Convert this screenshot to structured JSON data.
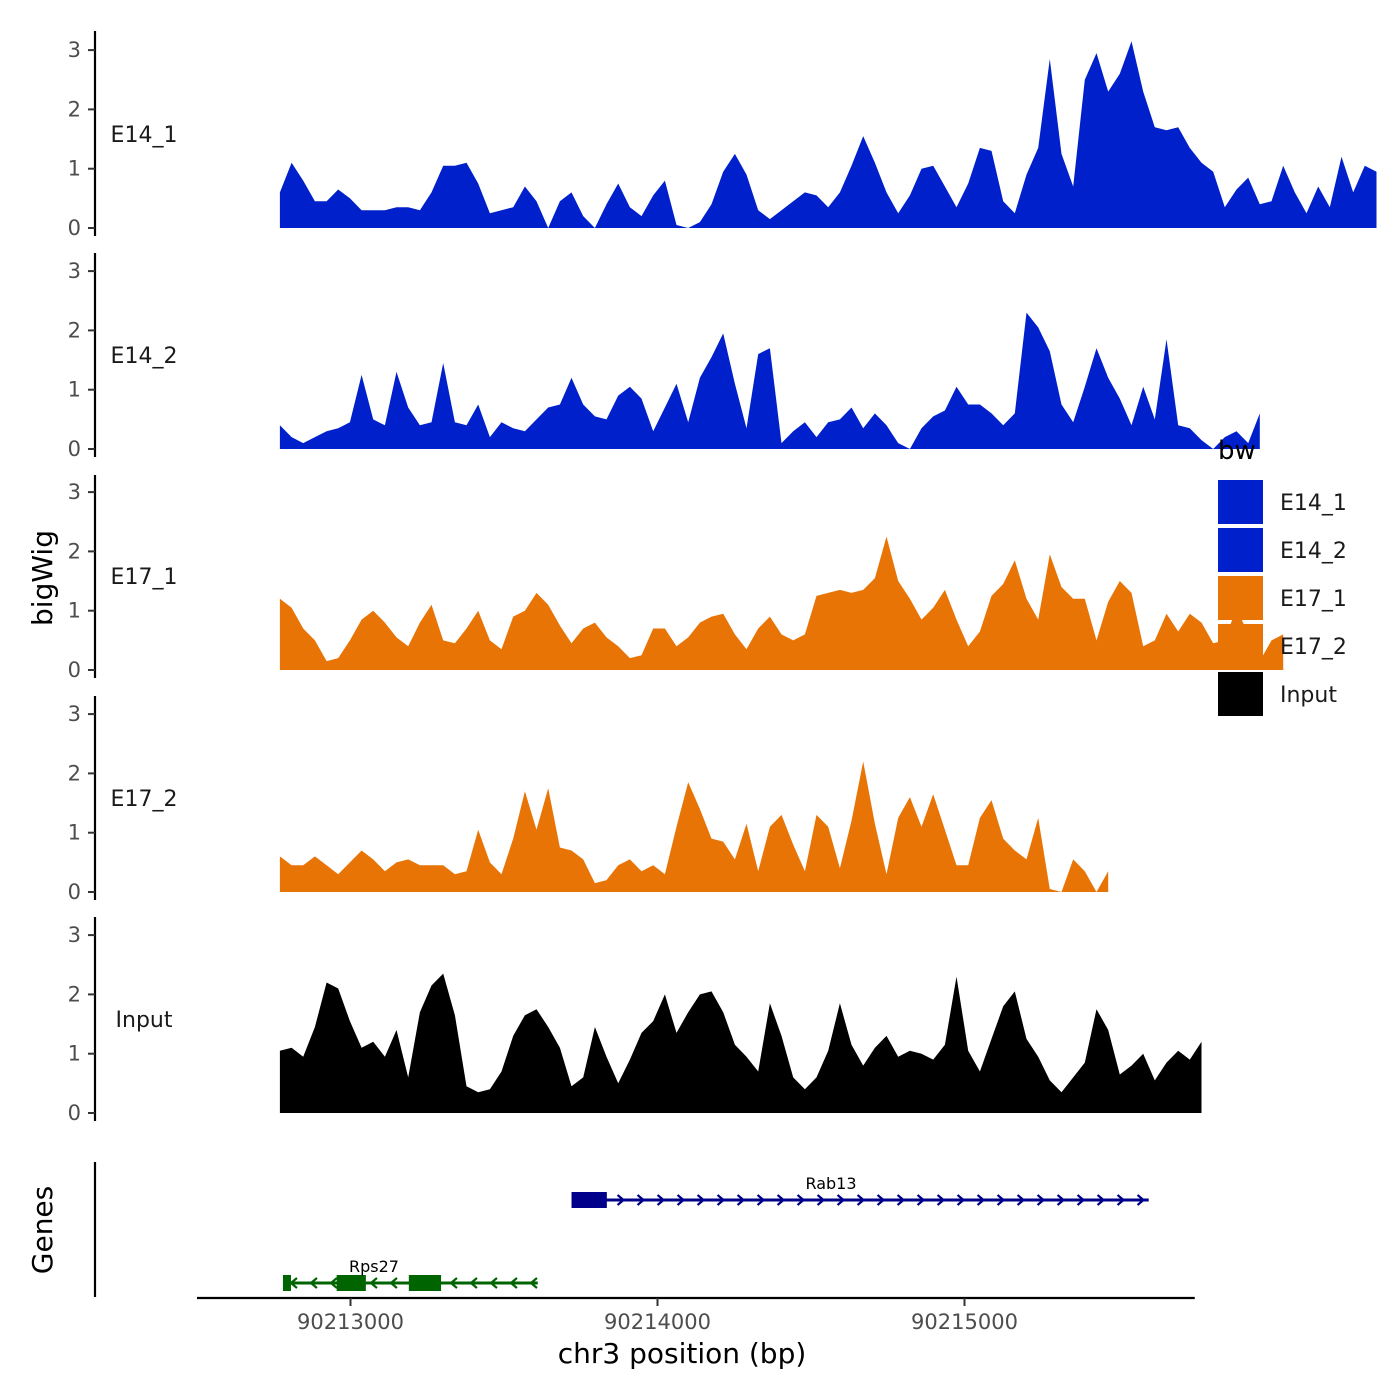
{
  "chart_data": {
    "type": "area",
    "title": "",
    "xlabel": "chr3 position (bp)",
    "ylabel_tracks": "bigWig",
    "ylabel_genes": "Genes",
    "chromosome": "chr3",
    "xlim": [
      90212500,
      90215750
    ],
    "x_ticks": [
      90213000,
      90214000,
      90215000
    ],
    "x_tick_labels": [
      "90213000",
      "90214000",
      "90215000"
    ],
    "ylim": [
      0,
      3.2
    ],
    "y_ticks": [
      0,
      1,
      2,
      3
    ],
    "y_tick_labels": [
      "0",
      "1",
      "2",
      "3"
    ],
    "x_start": 90212770,
    "x_step": 38,
    "legend": {
      "title": "bw",
      "position": "right",
      "entries": [
        {
          "label": "E14_1",
          "color": "#0020CC"
        },
        {
          "label": "E14_2",
          "color": "#0020CC"
        },
        {
          "label": "E17_1",
          "color": "#E87405"
        },
        {
          "label": "E17_2",
          "color": "#E87405"
        },
        {
          "label": "Input",
          "color": "#000000"
        }
      ]
    },
    "series": [
      {
        "name": "E14_1",
        "color": "#0020CC",
        "values": [
          0.6,
          1.1,
          0.8,
          0.45,
          0.45,
          0.65,
          0.5,
          0.3,
          0.3,
          0.3,
          0.35,
          0.35,
          0.3,
          0.6,
          1.05,
          1.05,
          1.1,
          0.75,
          0.25,
          0.3,
          0.35,
          0.7,
          0.45,
          0,
          0.45,
          0.6,
          0.2,
          0,
          0.4,
          0.75,
          0.35,
          0.2,
          0.55,
          0.8,
          0.05,
          0,
          0.1,
          0.4,
          0.95,
          1.25,
          0.9,
          0.3,
          0.15,
          0.3,
          0.45,
          0.6,
          0.55,
          0.35,
          0.6,
          1.05,
          1.55,
          1.1,
          0.6,
          0.25,
          0.55,
          1,
          1.05,
          0.7,
          0.35,
          0.75,
          1.35,
          1.3,
          0.45,
          0.25,
          0.9,
          1.35,
          2.85,
          1.25,
          0.7,
          2.5,
          2.95,
          2.3,
          2.6,
          3.15,
          2.3,
          1.7,
          1.65,
          1.7,
          1.35,
          1.1,
          0.95,
          0.35,
          0.65,
          0.85,
          0.4,
          0.45,
          1.05,
          0.6,
          0.25,
          0.7,
          0.35,
          1.2,
          0.6,
          1.05,
          0.95
        ]
      },
      {
        "name": "E14_2",
        "color": "#0020CC",
        "values": [
          0.4,
          0.2,
          0.1,
          0.2,
          0.3,
          0.35,
          0.45,
          1.25,
          0.5,
          0.4,
          1.3,
          0.7,
          0.4,
          0.45,
          1.45,
          0.45,
          0.4,
          0.75,
          0.2,
          0.45,
          0.35,
          0.3,
          0.5,
          0.7,
          0.75,
          1.2,
          0.75,
          0.55,
          0.5,
          0.9,
          1.05,
          0.85,
          0.3,
          0.7,
          1.1,
          0.45,
          1.2,
          1.55,
          1.95,
          1.1,
          0.35,
          1.6,
          1.7,
          0.1,
          0.3,
          0.45,
          0.2,
          0.45,
          0.5,
          0.7,
          0.35,
          0.6,
          0.4,
          0.1,
          0,
          0.35,
          0.55,
          0.65,
          1.05,
          0.75,
          0.75,
          0.6,
          0.4,
          0.6,
          2.3,
          2.05,
          1.65,
          0.75,
          0.45,
          1.05,
          1.7,
          1.2,
          0.85,
          0.4,
          1.05,
          0.5,
          1.85,
          0.4,
          0.35,
          0.15,
          0,
          0.2,
          0.3,
          0.1,
          0.6
        ]
      },
      {
        "name": "E17_1",
        "color": "#E87405",
        "values": [
          1.2,
          1.05,
          0.7,
          0.5,
          0.15,
          0.2,
          0.5,
          0.85,
          1,
          0.8,
          0.55,
          0.4,
          0.8,
          1.1,
          0.5,
          0.45,
          0.7,
          1,
          0.5,
          0.35,
          0.9,
          1,
          1.3,
          1.1,
          0.75,
          0.45,
          0.7,
          0.8,
          0.55,
          0.4,
          0.2,
          0.25,
          0.7,
          0.7,
          0.4,
          0.55,
          0.8,
          0.9,
          0.95,
          0.6,
          0.35,
          0.7,
          0.9,
          0.6,
          0.5,
          0.6,
          1.25,
          1.3,
          1.35,
          1.3,
          1.35,
          1.55,
          2.25,
          1.5,
          1.2,
          0.85,
          1.05,
          1.35,
          0.85,
          0.4,
          0.65,
          1.25,
          1.45,
          1.85,
          1.2,
          0.85,
          1.95,
          1.4,
          1.2,
          1.2,
          0.5,
          1.15,
          1.5,
          1.3,
          0.4,
          0.5,
          0.95,
          0.65,
          0.95,
          0.8,
          0.45,
          0.5,
          1.05,
          0.6,
          0.15,
          0.5,
          0.6
        ]
      },
      {
        "name": "E17_2",
        "color": "#E87405",
        "values": [
          0.6,
          0.45,
          0.45,
          0.6,
          0.45,
          0.3,
          0.5,
          0.7,
          0.55,
          0.35,
          0.5,
          0.55,
          0.45,
          0.45,
          0.45,
          0.3,
          0.35,
          1.05,
          0.5,
          0.3,
          0.9,
          1.7,
          1.05,
          1.75,
          0.75,
          0.7,
          0.55,
          0.15,
          0.2,
          0.45,
          0.55,
          0.35,
          0.45,
          0.3,
          1.1,
          1.85,
          1.4,
          0.9,
          0.85,
          0.55,
          1.15,
          0.35,
          1.1,
          1.3,
          0.8,
          0.35,
          1.3,
          1.1,
          0.4,
          1.2,
          2.2,
          1.15,
          0.3,
          1.25,
          1.6,
          1.1,
          1.65,
          1.05,
          0.45,
          0.45,
          1.25,
          1.55,
          0.9,
          0.7,
          0.55,
          1.25,
          0.05,
          0,
          0.55,
          0.35,
          0,
          0.35
        ]
      },
      {
        "name": "Input",
        "color": "#000000",
        "values": [
          1.05,
          1.1,
          0.95,
          1.45,
          2.2,
          2.1,
          1.55,
          1.1,
          1.2,
          0.95,
          1.4,
          0.6,
          1.7,
          2.15,
          2.35,
          1.65,
          0.45,
          0.35,
          0.4,
          0.7,
          1.3,
          1.65,
          1.75,
          1.45,
          1.1,
          0.45,
          0.6,
          1.45,
          0.95,
          0.5,
          0.9,
          1.35,
          1.55,
          2,
          1.35,
          1.7,
          2,
          2.05,
          1.7,
          1.15,
          0.95,
          0.7,
          1.85,
          1.3,
          0.6,
          0.4,
          0.6,
          1.05,
          1.85,
          1.15,
          0.8,
          1.1,
          1.3,
          0.95,
          1.05,
          1,
          0.9,
          1.15,
          2.3,
          1.05,
          0.7,
          1.25,
          1.8,
          2.05,
          1.25,
          0.95,
          0.55,
          0.35,
          0.6,
          0.85,
          1.75,
          1.4,
          0.65,
          0.8,
          1,
          0.55,
          0.85,
          1.05,
          0.9,
          1.2
        ]
      }
    ],
    "genes": [
      {
        "name": "Rps27",
        "color": "#006400",
        "strand": "-",
        "start": 90212780,
        "end": 90213610,
        "exons": [
          [
            90212780,
            90212800
          ],
          [
            90212955,
            90213050
          ],
          [
            90213190,
            90213295
          ]
        ]
      },
      {
        "name": "Rab13",
        "color": "#00008B",
        "strand": "+",
        "start": 90213720,
        "end": 90215600,
        "exons": [
          [
            90213720,
            90213835
          ]
        ]
      }
    ]
  }
}
